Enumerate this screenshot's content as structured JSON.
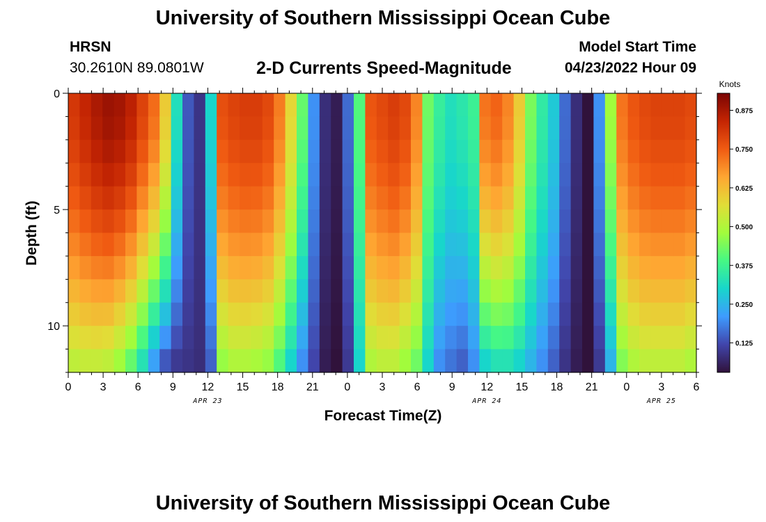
{
  "header": {
    "title": "University of Southern Mississippi Ocean Cube",
    "station": "HRSN",
    "coords": "30.2610N  89.0801W",
    "subtitle": "2-D Currents Speed-Magnitude",
    "model_start_label": "Model Start Time",
    "model_start_value": "04/23/2022 Hour 09"
  },
  "footer": {
    "title": "University of Southern Mississippi Ocean Cube"
  },
  "chart_data": {
    "type": "heatmap",
    "title": "2-D Currents Speed-Magnitude",
    "xlabel": "Forecast Time(Z)",
    "ylabel": "Depth (ft)",
    "x_range_hours": [
      0,
      54
    ],
    "y_range_ft": [
      0,
      12
    ],
    "x_tick_labels": [
      "0",
      "3",
      "6",
      "9",
      "12",
      "15",
      "18",
      "21",
      "0",
      "3",
      "6",
      "9",
      "12",
      "15",
      "18",
      "21",
      "0",
      "3",
      "6"
    ],
    "y_tick_labels": [
      "0",
      "5",
      "10"
    ],
    "y_tick_values": [
      0,
      5,
      10
    ],
    "date_labels": [
      {
        "label": "APR 23",
        "hour": 12
      },
      {
        "label": "APR 24",
        "hour": 36
      },
      {
        "label": "APR 25",
        "hour": 51
      }
    ],
    "colorbar": {
      "title": "Knots",
      "min": 0.03,
      "max": 0.93,
      "ticks": [
        "0.875",
        "0.750",
        "0.625",
        "0.500",
        "0.375",
        "0.250",
        "0.125"
      ],
      "tick_values": [
        0.875,
        0.75,
        0.625,
        0.5,
        0.375,
        0.25,
        0.125
      ]
    },
    "surface_speed_knots": [
      0.81,
      0.84,
      0.87,
      0.89,
      0.88,
      0.85,
      0.79,
      0.73,
      0.6,
      0.32,
      0.14,
      0.09,
      0.3,
      0.77,
      0.79,
      0.8,
      0.8,
      0.78,
      0.71,
      0.58,
      0.42,
      0.2,
      0.08,
      0.05,
      0.16,
      0.4,
      0.76,
      0.78,
      0.8,
      0.78,
      0.7,
      0.43,
      0.36,
      0.32,
      0.34,
      0.37,
      0.72,
      0.74,
      0.7,
      0.6,
      0.44,
      0.35,
      0.28,
      0.16,
      0.08,
      0.03,
      0.2,
      0.48,
      0.72,
      0.76,
      0.78,
      0.79,
      0.79,
      0.79,
      0.78
    ],
    "bottom_speed_knots": [
      0.52,
      0.53,
      0.53,
      0.52,
      0.48,
      0.42,
      0.33,
      0.22,
      0.14,
      0.1,
      0.09,
      0.08,
      0.15,
      0.47,
      0.5,
      0.5,
      0.49,
      0.47,
      0.4,
      0.3,
      0.2,
      0.12,
      0.05,
      0.03,
      0.1,
      0.3,
      0.5,
      0.52,
      0.52,
      0.48,
      0.43,
      0.3,
      0.2,
      0.17,
      0.15,
      0.2,
      0.3,
      0.33,
      0.33,
      0.3,
      0.25,
      0.2,
      0.15,
      0.09,
      0.05,
      0.03,
      0.1,
      0.25,
      0.45,
      0.5,
      0.52,
      0.52,
      0.52,
      0.52,
      0.5
    ],
    "depth_levels": 12,
    "depth_profile_exponent": 1.6
  }
}
